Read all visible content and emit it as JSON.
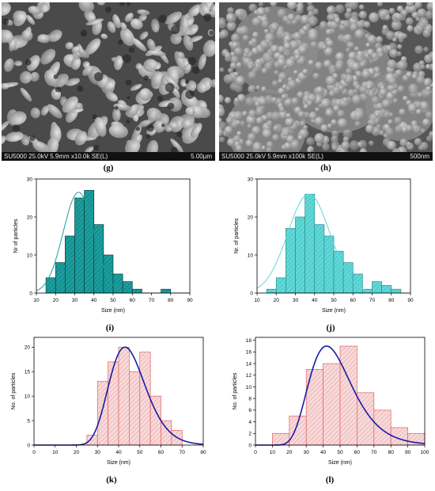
{
  "panels": {
    "g": {
      "caption": "(g)",
      "sem_info": "SU5000 25.0kV 5.9mm x10.0k SE(L)",
      "scale": "5.00μm"
    },
    "h": {
      "caption": "(h)",
      "sem_info": "SU5000 25.0kV 5.9mm x100k SE(L)",
      "scale": "500nm"
    },
    "i": {
      "caption": "(i)"
    },
    "j": {
      "caption": "(j)"
    },
    "k": {
      "caption": "(k)"
    },
    "l": {
      "caption": "(l)"
    }
  },
  "chart_data": [
    {
      "id": "i",
      "type": "bar",
      "xlabel": "Size (nm)",
      "ylabel": "Nr of particles",
      "xlim": [
        10,
        90
      ],
      "ylim": [
        0,
        30
      ],
      "xticks": [
        10,
        20,
        30,
        40,
        50,
        60,
        70,
        80,
        90
      ],
      "yticks": [
        0,
        10,
        20,
        30
      ],
      "bins": [
        [
          15,
          20,
          4
        ],
        [
          20,
          25,
          8
        ],
        [
          25,
          30,
          15
        ],
        [
          30,
          35,
          25
        ],
        [
          35,
          40,
          27
        ],
        [
          40,
          45,
          18
        ],
        [
          45,
          50,
          10
        ],
        [
          50,
          55,
          5
        ],
        [
          55,
          60,
          3
        ],
        [
          60,
          65,
          1
        ],
        [
          75,
          80,
          1
        ]
      ],
      "fit": {
        "mean": 32,
        "sd": 8,
        "peak": 26.5
      },
      "color": "#1a9e9e",
      "edge": "#0b3d3d"
    },
    {
      "id": "j",
      "type": "bar",
      "xlabel": "Size (nm)",
      "ylabel": "Nr. of particles",
      "xlim": [
        10,
        90
      ],
      "ylim": [
        0,
        30
      ],
      "xticks": [
        10,
        20,
        30,
        40,
        50,
        60,
        70,
        80,
        90
      ],
      "yticks": [
        0,
        10,
        20,
        30
      ],
      "bins": [
        [
          15,
          20,
          1
        ],
        [
          20,
          25,
          4
        ],
        [
          25,
          30,
          17
        ],
        [
          30,
          35,
          20
        ],
        [
          35,
          40,
          26
        ],
        [
          40,
          45,
          18
        ],
        [
          45,
          50,
          15
        ],
        [
          50,
          55,
          11
        ],
        [
          55,
          60,
          8
        ],
        [
          60,
          65,
          5
        ],
        [
          65,
          70,
          1
        ],
        [
          70,
          75,
          3
        ],
        [
          75,
          80,
          2
        ],
        [
          80,
          85,
          1
        ]
      ],
      "fit": {
        "mean": 37,
        "sd": 11,
        "peak": 26
      },
      "color": "#5fd8d8",
      "edge": "#2a8f8f"
    },
    {
      "id": "k",
      "type": "bar",
      "xlabel": "Size (nm)",
      "ylabel": "No. of particles",
      "xlim": [
        0,
        80
      ],
      "ylim": [
        0,
        22
      ],
      "xticks": [
        0,
        10,
        20,
        30,
        40,
        50,
        60,
        70,
        80
      ],
      "yticks": [
        0,
        5,
        10,
        15,
        20
      ],
      "bins": [
        [
          25,
          30,
          2
        ],
        [
          30,
          35,
          13
        ],
        [
          35,
          40,
          17
        ],
        [
          40,
          45,
          20
        ],
        [
          45,
          50,
          15
        ],
        [
          50,
          55,
          19
        ],
        [
          55,
          60,
          10
        ],
        [
          60,
          65,
          5
        ],
        [
          65,
          70,
          3
        ]
      ],
      "fit": {
        "type": "lognormal",
        "mode": 43,
        "peak": 20,
        "sigma": 0.2
      },
      "color": "#f6dada",
      "edge": "#e46060",
      "fit_color": "#1a1aa8"
    },
    {
      "id": "l",
      "type": "bar",
      "xlabel": "Size (nm)",
      "ylabel": "No. of particles",
      "xlim": [
        0,
        100
      ],
      "ylim": [
        0,
        18.5
      ],
      "xticks": [
        0,
        10,
        20,
        30,
        40,
        50,
        60,
        70,
        80,
        90,
        100
      ],
      "yticks": [
        0,
        2,
        4,
        6,
        8,
        10,
        12,
        14,
        16,
        18
      ],
      "bins": [
        [
          10,
          20,
          2
        ],
        [
          20,
          30,
          5
        ],
        [
          30,
          40,
          13
        ],
        [
          40,
          50,
          14
        ],
        [
          50,
          60,
          17
        ],
        [
          60,
          70,
          9
        ],
        [
          70,
          80,
          6
        ],
        [
          80,
          90,
          3
        ],
        [
          90,
          100,
          2
        ]
      ],
      "fit": {
        "type": "lognormal",
        "mode": 42,
        "peak": 17,
        "sigma": 0.3
      },
      "color": "#f6dada",
      "edge": "#e46060",
      "fit_color": "#1a1aa8"
    }
  ]
}
